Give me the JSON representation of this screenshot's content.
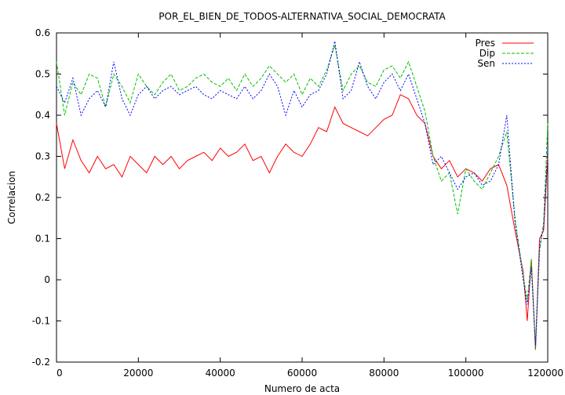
{
  "chart_data": {
    "type": "line",
    "title": "POR_EL_BIEN_DE_TODOS-ALTERNATIVA_SOCIAL_DEMOCRATA",
    "xlabel": "Numero de acta",
    "ylabel": "Correlacion",
    "xlim": [
      0,
      120000
    ],
    "ylim": [
      -0.2,
      0.6
    ],
    "x_ticks": [
      0,
      20000,
      40000,
      60000,
      80000,
      100000,
      120000
    ],
    "y_ticks": [
      -0.2,
      -0.1,
      0,
      0.1,
      0.2,
      0.3,
      0.4,
      0.5,
      0.6
    ],
    "x_tick_labels": [
      "0",
      "20000",
      "40000",
      "60000",
      "80000",
      "100000",
      "120000"
    ],
    "y_tick_labels": [
      "-0.2",
      "-0.1",
      "0",
      "0.1",
      "0.2",
      "0.3",
      "0.4",
      "0.5",
      "0.6"
    ],
    "legend_position": "top-right",
    "grid": false,
    "series": [
      {
        "name": "Pres",
        "color": "#ff0000",
        "style": "solid",
        "x": [
          0,
          2000,
          4000,
          6000,
          8000,
          10000,
          12000,
          14000,
          16000,
          18000,
          20000,
          22000,
          24000,
          26000,
          28000,
          30000,
          32000,
          34000,
          36000,
          38000,
          40000,
          42000,
          44000,
          46000,
          48000,
          50000,
          52000,
          54000,
          56000,
          58000,
          60000,
          62000,
          64000,
          66000,
          68000,
          70000,
          72000,
          74000,
          76000,
          78000,
          80000,
          82000,
          84000,
          86000,
          88000,
          90000,
          92000,
          94000,
          96000,
          98000,
          100000,
          102000,
          104000,
          106000,
          108000,
          110000,
          112000,
          114000,
          115000,
          116000,
          117000,
          118000,
          119000,
          120000
        ],
        "y": [
          0.38,
          0.27,
          0.34,
          0.29,
          0.26,
          0.3,
          0.27,
          0.28,
          0.25,
          0.3,
          0.28,
          0.26,
          0.3,
          0.28,
          0.3,
          0.27,
          0.29,
          0.3,
          0.31,
          0.29,
          0.32,
          0.3,
          0.31,
          0.33,
          0.29,
          0.3,
          0.26,
          0.3,
          0.33,
          0.31,
          0.3,
          0.33,
          0.37,
          0.36,
          0.42,
          0.38,
          0.37,
          0.36,
          0.35,
          0.37,
          0.39,
          0.4,
          0.45,
          0.44,
          0.4,
          0.38,
          0.3,
          0.27,
          0.29,
          0.25,
          0.27,
          0.26,
          0.24,
          0.27,
          0.28,
          0.23,
          0.12,
          0.02,
          -0.1,
          0.05,
          -0.17,
          0.1,
          0.12,
          0.3
        ]
      },
      {
        "name": "Dip",
        "color": "#00c000",
        "style": "dashed",
        "x": [
          0,
          2000,
          4000,
          6000,
          8000,
          10000,
          12000,
          14000,
          16000,
          18000,
          20000,
          22000,
          24000,
          26000,
          28000,
          30000,
          32000,
          34000,
          36000,
          38000,
          40000,
          42000,
          44000,
          46000,
          48000,
          50000,
          52000,
          54000,
          56000,
          58000,
          60000,
          62000,
          64000,
          66000,
          68000,
          70000,
          72000,
          74000,
          76000,
          78000,
          80000,
          82000,
          84000,
          86000,
          88000,
          90000,
          92000,
          94000,
          96000,
          98000,
          100000,
          102000,
          104000,
          106000,
          108000,
          110000,
          112000,
          114000,
          115000,
          116000,
          117000,
          118000,
          119000,
          120000
        ],
        "y": [
          0.53,
          0.4,
          0.48,
          0.45,
          0.5,
          0.49,
          0.42,
          0.5,
          0.47,
          0.43,
          0.5,
          0.47,
          0.45,
          0.48,
          0.5,
          0.46,
          0.47,
          0.49,
          0.5,
          0.48,
          0.47,
          0.49,
          0.46,
          0.5,
          0.47,
          0.49,
          0.52,
          0.5,
          0.48,
          0.5,
          0.45,
          0.49,
          0.47,
          0.51,
          0.57,
          0.46,
          0.5,
          0.52,
          0.48,
          0.47,
          0.51,
          0.52,
          0.49,
          0.53,
          0.47,
          0.41,
          0.3,
          0.24,
          0.26,
          0.16,
          0.27,
          0.24,
          0.22,
          0.26,
          0.3,
          0.36,
          0.15,
          0.01,
          -0.05,
          0.05,
          -0.17,
          0.07,
          0.14,
          0.38
        ]
      },
      {
        "name": "Sen",
        "color": "#0000ff",
        "style": "dotted",
        "x": [
          0,
          2000,
          4000,
          6000,
          8000,
          10000,
          12000,
          14000,
          16000,
          18000,
          20000,
          22000,
          24000,
          26000,
          28000,
          30000,
          32000,
          34000,
          36000,
          38000,
          40000,
          42000,
          44000,
          46000,
          48000,
          50000,
          52000,
          54000,
          56000,
          58000,
          60000,
          62000,
          64000,
          66000,
          68000,
          70000,
          72000,
          74000,
          76000,
          78000,
          80000,
          82000,
          84000,
          86000,
          88000,
          90000,
          92000,
          94000,
          96000,
          98000,
          100000,
          102000,
          104000,
          106000,
          108000,
          110000,
          112000,
          114000,
          115000,
          116000,
          117000,
          118000,
          119000,
          120000
        ],
        "y": [
          0.47,
          0.43,
          0.49,
          0.4,
          0.44,
          0.46,
          0.42,
          0.53,
          0.44,
          0.4,
          0.45,
          0.47,
          0.44,
          0.46,
          0.47,
          0.45,
          0.46,
          0.47,
          0.45,
          0.44,
          0.46,
          0.45,
          0.44,
          0.47,
          0.44,
          0.46,
          0.5,
          0.47,
          0.4,
          0.46,
          0.42,
          0.45,
          0.46,
          0.5,
          0.58,
          0.44,
          0.46,
          0.53,
          0.47,
          0.44,
          0.48,
          0.5,
          0.46,
          0.5,
          0.44,
          0.38,
          0.28,
          0.3,
          0.26,
          0.22,
          0.25,
          0.26,
          0.23,
          0.24,
          0.28,
          0.4,
          0.14,
          0.0,
          -0.06,
          0.03,
          -0.16,
          0.08,
          0.13,
          0.32
        ]
      }
    ]
  }
}
